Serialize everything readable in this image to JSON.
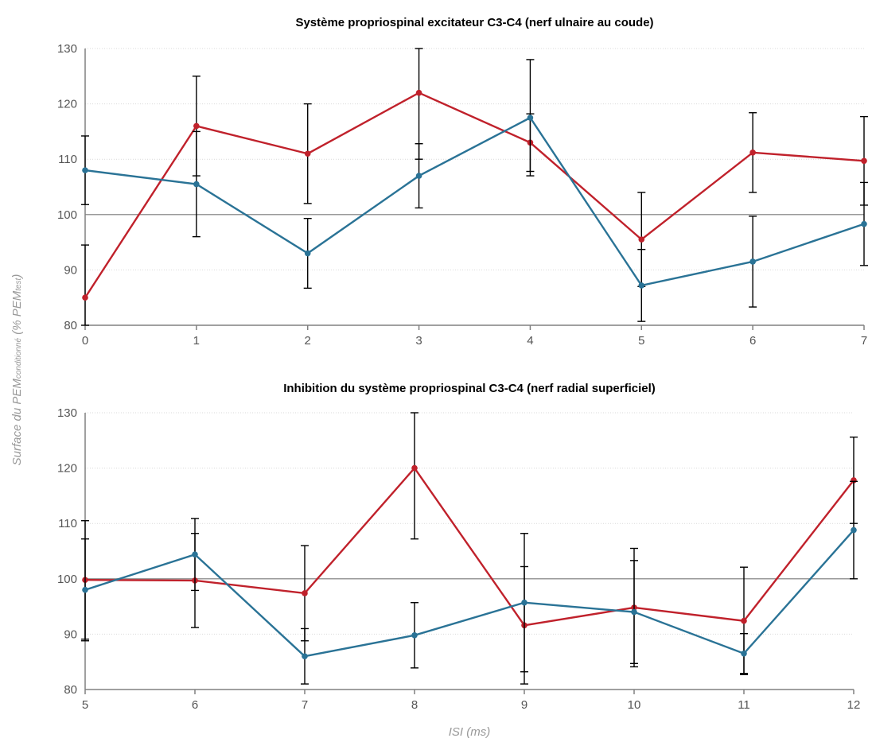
{
  "chart_data": [
    {
      "type": "line",
      "title": "Système propriospinal excitateur C3-C4 (nerf ulnaire au coude)",
      "x": [
        0,
        1,
        2,
        3,
        4,
        5,
        6,
        7
      ],
      "ylim": [
        80,
        130
      ],
      "yticks": [
        80,
        90,
        100,
        110,
        120,
        130
      ],
      "reference_y": 100,
      "grid": true,
      "series": [
        {
          "color": "#c0212b",
          "values": [
            85,
            116,
            111,
            122,
            113,
            95.5,
            111.2,
            109.7
          ],
          "error": [
            9.5,
            9,
            9,
            12,
            5.2,
            8.5,
            7.2,
            8
          ]
        },
        {
          "color": "#2a7396",
          "values": [
            108,
            105.5,
            93,
            107,
            117.5,
            87.2,
            91.5,
            98.3
          ],
          "error": [
            6.2,
            9.5,
            6.3,
            5.8,
            10.5,
            6.5,
            8.2,
            7.5
          ]
        }
      ]
    },
    {
      "type": "line",
      "title": "Inhibition du système propriospinal C3-C4 (nerf radial superficiel)",
      "x": [
        5,
        6,
        7,
        8,
        9,
        10,
        11,
        12
      ],
      "ylim": [
        80,
        130
      ],
      "yticks": [
        80,
        90,
        100,
        110,
        120,
        130
      ],
      "reference_y": 100,
      "grid": true,
      "series": [
        {
          "color": "#c0212b",
          "values": [
            99.8,
            99.7,
            97.4,
            120,
            91.6,
            94.8,
            92.4,
            117.8
          ],
          "error": [
            10.7,
            8.5,
            8.6,
            12.8,
            10.6,
            10.7,
            9.7,
            7.8
          ]
        },
        {
          "color": "#2a7396",
          "values": [
            98,
            104.4,
            86,
            89.8,
            95.7,
            94,
            86.5,
            108.8
          ],
          "error": [
            9.2,
            6.5,
            5,
            5.9,
            12.5,
            9.3,
            3.6,
            8.8
          ]
        }
      ]
    }
  ],
  "shared_ylabel": {
    "main": "Surface du PEM",
    "sub1": "conditionné",
    "mid": " (% PEM",
    "sub2": "test",
    "end": ")"
  },
  "shared_xlabel": "ISI (ms)"
}
